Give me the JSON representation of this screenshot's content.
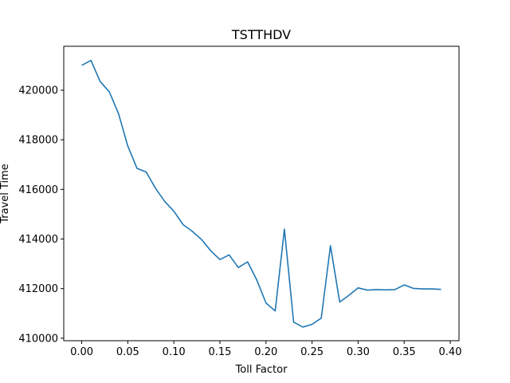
{
  "chart_data": {
    "type": "line",
    "title": "TSTTHDV",
    "xlabel": "Toll Factor",
    "ylabel": "Travel Time",
    "xlim": [
      -0.0195,
      0.4095
    ],
    "ylim": [
      409900,
      421770
    ],
    "xticks": [
      0.0,
      0.05,
      0.1,
      0.15,
      0.2,
      0.25,
      0.3,
      0.35,
      0.4
    ],
    "xtick_labels": [
      "0.00",
      "0.05",
      "0.10",
      "0.15",
      "0.20",
      "0.25",
      "0.30",
      "0.35",
      "0.40"
    ],
    "yticks": [
      410000,
      412000,
      414000,
      416000,
      418000,
      420000
    ],
    "ytick_labels": [
      "410000",
      "412000",
      "414000",
      "416000",
      "418000",
      "420000"
    ],
    "grid": false,
    "series": [
      {
        "name": "TSTTHDV",
        "color": "#1f77b4",
        "x": [
          0.0,
          0.01,
          0.02,
          0.03,
          0.04,
          0.05,
          0.06,
          0.07,
          0.08,
          0.09,
          0.1,
          0.11,
          0.12,
          0.13,
          0.14,
          0.15,
          0.16,
          0.17,
          0.18,
          0.19,
          0.2,
          0.21,
          0.22,
          0.23,
          0.24,
          0.25,
          0.26,
          0.27,
          0.28,
          0.29,
          0.3,
          0.31,
          0.32,
          0.33,
          0.34,
          0.35,
          0.36,
          0.37,
          0.38,
          0.39
        ],
        "values": [
          421000,
          421200,
          420350,
          419930,
          419050,
          417750,
          416850,
          416700,
          416050,
          415520,
          415120,
          414580,
          414310,
          413980,
          413530,
          413170,
          413360,
          412850,
          413080,
          412350,
          411420,
          411100,
          414400,
          410650,
          410450,
          410560,
          410810,
          413730,
          411460,
          411730,
          412030,
          411940,
          411960,
          411950,
          411960,
          412150,
          412010,
          411990,
          411990,
          411970
        ]
      }
    ]
  }
}
